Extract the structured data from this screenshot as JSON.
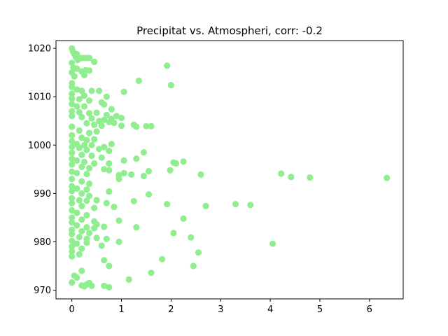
{
  "chart_data": {
    "type": "scatter",
    "title": "Precipitat vs. Atmospheri, corr: -0.2",
    "xlabel": "",
    "ylabel": "",
    "xlim": [
      -0.32,
      6.68
    ],
    "ylim": [
      968.2,
      1021.6
    ],
    "xticks": [
      0,
      1,
      2,
      3,
      4,
      5,
      6
    ],
    "yticks": [
      970,
      980,
      990,
      1000,
      1010,
      1020
    ],
    "grid": false,
    "marker_color": "#90ee90",
    "points": [
      [
        0,
        1020
      ],
      [
        0.02,
        1019.4
      ],
      [
        0.05,
        1018.8
      ],
      [
        0.08,
        1018.2
      ],
      [
        0.1,
        1018.8
      ],
      [
        0.12,
        1017.6
      ],
      [
        0.15,
        1018
      ],
      [
        0.2,
        1018
      ],
      [
        0.25,
        1018
      ],
      [
        0.3,
        1018
      ],
      [
        0.35,
        1018
      ],
      [
        0.45,
        1017.2
      ],
      [
        1.92,
        1016.4
      ],
      [
        0,
        1017
      ],
      [
        0.03,
        1016
      ],
      [
        0.1,
        1015.8
      ],
      [
        0.2,
        1015.2
      ],
      [
        0.28,
        1015.5
      ],
      [
        0.35,
        1015.4
      ],
      [
        0,
        1015
      ],
      [
        0.05,
        1014.2
      ],
      [
        0.25,
        1014.5
      ],
      [
        1.35,
        1013.3
      ],
      [
        0,
        1012.8
      ],
      [
        2,
        1012.4
      ],
      [
        0,
        1012
      ],
      [
        0.1,
        1011.5
      ],
      [
        0.2,
        1011.2
      ],
      [
        0.4,
        1011.2
      ],
      [
        0.55,
        1011.2
      ],
      [
        1.05,
        1011
      ],
      [
        0,
        1010.6
      ],
      [
        0.25,
        1010.2
      ],
      [
        0.7,
        1010
      ],
      [
        0,
        1009.6
      ],
      [
        0.15,
        1009.5
      ],
      [
        0.35,
        1009.2
      ],
      [
        0.6,
        1008.8
      ],
      [
        0,
        1008.5
      ],
      [
        0.1,
        1008
      ],
      [
        0.25,
        1008
      ],
      [
        0.65,
        1008.4
      ],
      [
        0.8,
        1007.4
      ],
      [
        0,
        1007
      ],
      [
        0.15,
        1006.8
      ],
      [
        0.35,
        1006.6
      ],
      [
        0.5,
        1006.7
      ],
      [
        0.7,
        1006.2
      ],
      [
        0.9,
        1006
      ],
      [
        1,
        1005.6
      ],
      [
        0,
        1006
      ],
      [
        0.2,
        1005.8
      ],
      [
        0.4,
        1005.5
      ],
      [
        0.55,
        1005
      ],
      [
        0.65,
        1005.2
      ],
      [
        0.75,
        1004.8
      ],
      [
        0.8,
        1005.4
      ],
      [
        0.85,
        1004.6
      ],
      [
        1.25,
        1004.2
      ],
      [
        1.3,
        1003.8
      ],
      [
        1.5,
        1003.9
      ],
      [
        1.6,
        1003.9
      ],
      [
        0.3,
        1004.5
      ],
      [
        0.45,
        1004.2
      ],
      [
        0.6,
        1004
      ],
      [
        1,
        1004
      ],
      [
        0,
        1003.8
      ],
      [
        0.15,
        1003
      ],
      [
        0.35,
        1002.5
      ],
      [
        0.5,
        1002.8
      ],
      [
        0,
        1002
      ],
      [
        0.2,
        1001.5
      ],
      [
        0.3,
        1001
      ],
      [
        0.45,
        1001.2
      ],
      [
        0,
        1000.8
      ],
      [
        0.1,
        1000.2
      ],
      [
        0.25,
        1000
      ],
      [
        0.4,
        1000
      ],
      [
        0.8,
        1000.2
      ],
      [
        0,
        999.6
      ],
      [
        0.15,
        999.4
      ],
      [
        0.3,
        999
      ],
      [
        0.55,
        999.2
      ],
      [
        0.65,
        999.6
      ],
      [
        0.75,
        998.8
      ],
      [
        1.45,
        998.5
      ],
      [
        0,
        998.4
      ],
      [
        0.2,
        998
      ],
      [
        0.4,
        997.8
      ],
      [
        0.6,
        997.4
      ],
      [
        1.3,
        997.2
      ],
      [
        0,
        997.2
      ],
      [
        0.1,
        996.8
      ],
      [
        0.25,
        996.5
      ],
      [
        0.45,
        996.2
      ],
      [
        0.75,
        996.2
      ],
      [
        1.05,
        996.8
      ],
      [
        2.05,
        996.4
      ],
      [
        2.1,
        996.2
      ],
      [
        2.25,
        996.6
      ],
      [
        0,
        996
      ],
      [
        0.2,
        995.5
      ],
      [
        0.35,
        995.2
      ],
      [
        0.65,
        995
      ],
      [
        0.75,
        994.8
      ],
      [
        1.55,
        994.6
      ],
      [
        1.98,
        994.8
      ],
      [
        0,
        994.5
      ],
      [
        0.1,
        994.2
      ],
      [
        0.3,
        994
      ],
      [
        0.95,
        993.8
      ],
      [
        1.05,
        994.2
      ],
      [
        1.2,
        993.9
      ],
      [
        1.45,
        993.6
      ],
      [
        2.6,
        993.9
      ],
      [
        4.22,
        994.1
      ],
      [
        4.42,
        993.4
      ],
      [
        4.8,
        993.3
      ],
      [
        6.35,
        993.2
      ],
      [
        0.95,
        993
      ],
      [
        0,
        993
      ],
      [
        0.2,
        992.5
      ],
      [
        0.35,
        992
      ],
      [
        0,
        991.5
      ],
      [
        0.1,
        991
      ],
      [
        0.3,
        990.8
      ],
      [
        0.75,
        990.4
      ],
      [
        0,
        990.5
      ],
      [
        0.2,
        990
      ],
      [
        0.35,
        989.5
      ],
      [
        1.55,
        989.8
      ],
      [
        0,
        989
      ],
      [
        0.15,
        988.6
      ],
      [
        0.3,
        988.5
      ],
      [
        0.5,
        988.6
      ],
      [
        1.25,
        988.4
      ],
      [
        0.7,
        988
      ],
      [
        1.92,
        987.8
      ],
      [
        3.3,
        987.8
      ],
      [
        3.6,
        987.6
      ],
      [
        0,
        988
      ],
      [
        0.2,
        987.4
      ],
      [
        0.45,
        987
      ],
      [
        0.85,
        987.2
      ],
      [
        2.7,
        987.4
      ],
      [
        0,
        986.5
      ],
      [
        0.1,
        986
      ],
      [
        0.3,
        985.5
      ],
      [
        0,
        985
      ],
      [
        0.2,
        984.6
      ],
      [
        0.45,
        984.2
      ],
      [
        0.95,
        984.4
      ],
      [
        2.25,
        984.8
      ],
      [
        0,
        984
      ],
      [
        0.1,
        983.4
      ],
      [
        0.3,
        983
      ],
      [
        0.45,
        982.8
      ],
      [
        0.5,
        983.6
      ],
      [
        0.65,
        983.1
      ],
      [
        1.3,
        983
      ],
      [
        0,
        982.5
      ],
      [
        0.2,
        982.2
      ],
      [
        0.35,
        981.8
      ],
      [
        0,
        981.6
      ],
      [
        0.15,
        981
      ],
      [
        0.3,
        980.6
      ],
      [
        0.5,
        980.8
      ],
      [
        0.7,
        980.6
      ],
      [
        0.95,
        980
      ],
      [
        2.05,
        981.8
      ],
      [
        2.4,
        980.9
      ],
      [
        0,
        980.2
      ],
      [
        0.1,
        979.6
      ],
      [
        0.3,
        979.8
      ],
      [
        0.6,
        979.2
      ],
      [
        4.05,
        979.6
      ],
      [
        0,
        979
      ],
      [
        0.2,
        978.6
      ],
      [
        0,
        978
      ],
      [
        0.15,
        977.4
      ],
      [
        2.55,
        977.8
      ],
      [
        0.65,
        976.2
      ],
      [
        1.82,
        976.4
      ],
      [
        0,
        977
      ],
      [
        0.75,
        975
      ],
      [
        2.45,
        975
      ],
      [
        0.2,
        974
      ],
      [
        1.6,
        973.6
      ],
      [
        0.05,
        973
      ],
      [
        0.1,
        972.6
      ],
      [
        1.15,
        972.2
      ],
      [
        0,
        971.6
      ],
      [
        0.2,
        971
      ],
      [
        0.25,
        970.8
      ],
      [
        0.3,
        971.2
      ],
      [
        0.35,
        971.5
      ],
      [
        0.4,
        970.9
      ],
      [
        0.65,
        970.9
      ],
      [
        0.75,
        970.6
      ]
    ]
  }
}
